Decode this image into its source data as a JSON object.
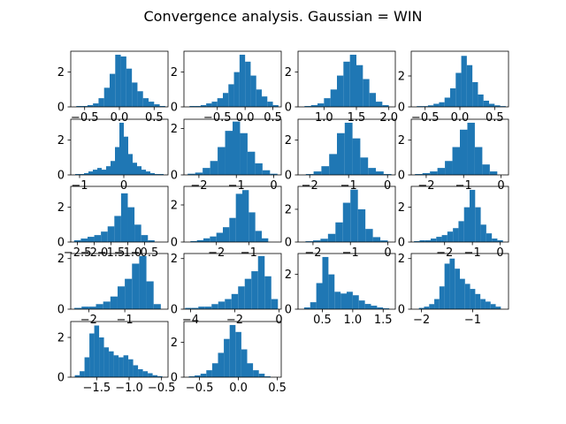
{
  "title": "Convergence analysis. Gaussian = WIN",
  "colors": {
    "bar": "#1f77b4",
    "axis": "#000000",
    "background": "#ffffff"
  },
  "chart_data": [
    {
      "type": "bar",
      "xlim": [
        -0.7,
        0.7
      ],
      "ylim": [
        0,
        3.2
      ],
      "xticks": [
        -0.5,
        0,
        0.5
      ],
      "xtick_labels": [
        "−0.5",
        "0.0",
        "0.5"
      ],
      "yticks": [
        0,
        2
      ],
      "ytick_labels": [
        "0",
        "2"
      ],
      "categories": [
        -0.58,
        -0.5,
        -0.42,
        -0.34,
        -0.26,
        -0.18,
        -0.1,
        -0.02,
        0.06,
        0.14,
        0.22,
        0.3,
        0.38,
        0.46,
        0.54,
        0.62
      ],
      "values": [
        0.05,
        0.05,
        0.1,
        0.2,
        0.5,
        1.1,
        1.9,
        3.0,
        2.9,
        2.2,
        1.4,
        0.9,
        0.5,
        0.3,
        0.15,
        0.05
      ]
    },
    {
      "type": "bar",
      "xlim": [
        -1.1,
        0.65
      ],
      "ylim": [
        0,
        3.2
      ],
      "xticks": [
        -0.5,
        0,
        0.5
      ],
      "xtick_labels": [
        "−0.5",
        "0.0",
        "0.5"
      ],
      "yticks": [
        0,
        2
      ],
      "ytick_labels": [
        "0",
        "2"
      ],
      "categories": [
        -0.95,
        -0.85,
        -0.75,
        -0.65,
        -0.55,
        -0.45,
        -0.35,
        -0.25,
        -0.15,
        -0.05,
        0.05,
        0.15,
        0.25,
        0.35,
        0.45,
        0.55
      ],
      "values": [
        0.05,
        0.05,
        0.1,
        0.2,
        0.3,
        0.5,
        0.8,
        1.3,
        2.0,
        3.0,
        2.6,
        1.8,
        1.0,
        0.6,
        0.3,
        0.1
      ]
    },
    {
      "type": "bar",
      "xlim": [
        0.6,
        2.1
      ],
      "ylim": [
        0,
        3.2
      ],
      "xticks": [
        1.0,
        1.5,
        2.0
      ],
      "xtick_labels": [
        "1.0",
        "1.5",
        "2.0"
      ],
      "yticks": [
        0,
        2
      ],
      "ytick_labels": [
        "0",
        "2"
      ],
      "categories": [
        0.75,
        0.85,
        0.95,
        1.05,
        1.15,
        1.25,
        1.35,
        1.45,
        1.55,
        1.65,
        1.75,
        1.85,
        1.95
      ],
      "values": [
        0.05,
        0.1,
        0.2,
        0.5,
        1.0,
        1.8,
        2.6,
        3.0,
        2.4,
        1.6,
        0.8,
        0.3,
        0.1
      ]
    },
    {
      "type": "bar",
      "xlim": [
        -0.7,
        0.7
      ],
      "ylim": [
        0,
        3.6
      ],
      "xticks": [
        -0.5,
        0,
        0.5
      ],
      "xtick_labels": [
        "−0.5",
        "0.0",
        "0.5"
      ],
      "yticks": [
        0,
        2
      ],
      "ytick_labels": [
        "0",
        "2"
      ],
      "categories": [
        -0.58,
        -0.5,
        -0.42,
        -0.34,
        -0.26,
        -0.18,
        -0.1,
        -0.02,
        0.06,
        0.14,
        0.22,
        0.3,
        0.38,
        0.46,
        0.54,
        0.62
      ],
      "values": [
        0.05,
        0.05,
        0.1,
        0.2,
        0.3,
        0.6,
        1.2,
        2.2,
        3.3,
        2.7,
        1.6,
        0.8,
        0.4,
        0.2,
        0.1,
        0.05
      ]
    },
    {
      "type": "bar",
      "xlim": [
        -1.2,
        1.0
      ],
      "ylim": [
        0,
        3.2
      ],
      "xticks": [
        -1,
        0
      ],
      "xtick_labels": [
        "−1",
        "0"
      ],
      "yticks": [
        0,
        2
      ],
      "ytick_labels": [
        "0",
        "2"
      ],
      "categories": [
        -1.05,
        -0.95,
        -0.85,
        -0.75,
        -0.65,
        -0.55,
        -0.45,
        -0.35,
        -0.25,
        -0.15,
        -0.05,
        0.05,
        0.15,
        0.25,
        0.35,
        0.45,
        0.55,
        0.65,
        0.75,
        0.85
      ],
      "values": [
        0.05,
        0.05,
        0.1,
        0.2,
        0.3,
        0.4,
        0.3,
        0.5,
        0.8,
        1.6,
        3.0,
        2.2,
        1.2,
        0.7,
        0.5,
        0.3,
        0.2,
        0.1,
        0.05,
        0.05
      ]
    },
    {
      "type": "bar",
      "xlim": [
        -2.4,
        0.2
      ],
      "ylim": [
        0,
        2.4
      ],
      "xticks": [
        -2,
        -1,
        0
      ],
      "xtick_labels": [
        "−2",
        "−1",
        "0"
      ],
      "yticks": [
        0,
        2
      ],
      "ytick_labels": [
        "0",
        "2"
      ],
      "categories": [
        -2.2,
        -2.0,
        -1.8,
        -1.6,
        -1.4,
        -1.2,
        -1.0,
        -0.8,
        -0.6,
        -0.4,
        -0.2,
        0.0
      ],
      "values": [
        0.05,
        0.1,
        0.3,
        0.6,
        1.2,
        1.9,
        2.3,
        1.8,
        1.0,
        0.5,
        0.2,
        0.05
      ]
    },
    {
      "type": "bar",
      "xlim": [
        -2.3,
        0.2
      ],
      "ylim": [
        0,
        3.2
      ],
      "xticks": [
        -2,
        -1,
        0
      ],
      "xtick_labels": [
        "−2",
        "−1",
        "0"
      ],
      "yticks": [
        0,
        2
      ],
      "ytick_labels": [
        "0",
        "2"
      ],
      "categories": [
        -2.0,
        -1.8,
        -1.6,
        -1.4,
        -1.2,
        -1.0,
        -0.8,
        -0.6,
        -0.4,
        -0.2,
        0.0
      ],
      "values": [
        0.05,
        0.2,
        0.5,
        1.2,
        2.4,
        3.0,
        2.1,
        1.0,
        0.4,
        0.2,
        0.05
      ]
    },
    {
      "type": "bar",
      "xlim": [
        -2.4,
        0.2
      ],
      "ylim": [
        0,
        3.2
      ],
      "xticks": [
        -2,
        -1,
        0
      ],
      "xtick_labels": [
        "−2",
        "−1",
        "0"
      ],
      "yticks": [
        0,
        2
      ],
      "ytick_labels": [
        "0",
        "2"
      ],
      "categories": [
        -2.2,
        -2.0,
        -1.8,
        -1.6,
        -1.4,
        -1.2,
        -1.0,
        -0.8,
        -0.6,
        -0.4,
        -0.2
      ],
      "values": [
        0.05,
        0.1,
        0.2,
        0.4,
        0.8,
        1.6,
        2.6,
        3.0,
        1.6,
        0.6,
        0.2
      ]
    },
    {
      "type": "bar",
      "xlim": [
        -2.7,
        0.2
      ],
      "ylim": [
        0,
        3.2
      ],
      "xticks": [
        -2.5,
        -2.0,
        -1.5,
        -1.0,
        -0.5
      ],
      "xtick_labels": [
        "−2.5",
        "−2.0",
        "−1.5",
        "−1.0",
        "−0.5"
      ],
      "yticks": [
        0,
        2
      ],
      "ytick_labels": [
        "0",
        "2"
      ],
      "categories": [
        -2.5,
        -2.3,
        -2.1,
        -1.9,
        -1.7,
        -1.5,
        -1.3,
        -1.1,
        -0.9,
        -0.7,
        -0.5,
        -0.3
      ],
      "values": [
        0.1,
        0.2,
        0.3,
        0.4,
        0.6,
        0.9,
        1.5,
        2.8,
        2.0,
        1.0,
        0.4,
        0.1
      ]
    },
    {
      "type": "bar",
      "xlim": [
        -3.0,
        0.0
      ],
      "ylim": [
        0,
        3.0
      ],
      "xticks": [
        -2,
        -1
      ],
      "xtick_labels": [
        "−2",
        "−1"
      ],
      "yticks": [
        0,
        2
      ],
      "ytick_labels": [
        "0",
        "2"
      ],
      "categories": [
        -2.7,
        -2.5,
        -2.3,
        -2.1,
        -1.9,
        -1.7,
        -1.5,
        -1.3,
        -1.1,
        -0.9,
        -0.7,
        -0.5
      ],
      "values": [
        0.05,
        0.1,
        0.2,
        0.3,
        0.5,
        0.8,
        1.3,
        2.6,
        2.8,
        1.6,
        0.6,
        0.2
      ]
    },
    {
      "type": "bar",
      "xlim": [
        -2.4,
        0.2
      ],
      "ylim": [
        0,
        3.4
      ],
      "xticks": [
        -2,
        -1,
        0
      ],
      "xtick_labels": [
        "−2",
        "−1",
        "0"
      ],
      "yticks": [
        0,
        2
      ],
      "ytick_labels": [
        "0",
        "2"
      ],
      "categories": [
        -2.1,
        -1.9,
        -1.7,
        -1.5,
        -1.3,
        -1.1,
        -0.9,
        -0.7,
        -0.5,
        -0.3,
        -0.1
      ],
      "values": [
        0.05,
        0.1,
        0.2,
        0.5,
        1.2,
        2.4,
        3.2,
        2.0,
        0.8,
        0.3,
        0.1
      ]
    },
    {
      "type": "bar",
      "xlim": [
        -3.2,
        0.3
      ],
      "ylim": [
        0,
        3.2
      ],
      "xticks": [
        -2,
        -1,
        0
      ],
      "xtick_labels": [
        "−2",
        "−1",
        "0"
      ],
      "yticks": [
        0,
        2
      ],
      "ytick_labels": [
        "0",
        "2"
      ],
      "categories": [
        -3.0,
        -2.8,
        -2.6,
        -2.4,
        -2.2,
        -2.0,
        -1.8,
        -1.6,
        -1.4,
        -1.2,
        -1.0,
        -0.8,
        -0.6,
        -0.4,
        -0.2,
        0.0
      ],
      "values": [
        0.05,
        0.1,
        0.1,
        0.2,
        0.3,
        0.4,
        0.6,
        0.8,
        1.2,
        2.0,
        3.0,
        2.0,
        1.0,
        0.5,
        0.2,
        0.1
      ]
    },
    {
      "type": "bar",
      "xlim": [
        -2.5,
        0.2
      ],
      "ylim": [
        0,
        2.2
      ],
      "xticks": [
        -2,
        -1
      ],
      "xtick_labels": [
        "−2",
        "−1"
      ],
      "yticks": [
        0,
        2
      ],
      "ytick_labels": [
        "0",
        "2"
      ],
      "categories": [
        -2.3,
        -2.1,
        -1.9,
        -1.7,
        -1.5,
        -1.3,
        -1.1,
        -0.9,
        -0.7,
        -0.5,
        -0.3,
        -0.1
      ],
      "values": [
        0.05,
        0.1,
        0.1,
        0.2,
        0.3,
        0.5,
        0.9,
        1.2,
        1.8,
        2.1,
        1.1,
        0.2
      ]
    },
    {
      "type": "bar",
      "xlim": [
        -4.3,
        0.1
      ],
      "ylim": [
        0,
        2.2
      ],
      "xticks": [
        -4,
        -2,
        0
      ],
      "xtick_labels": [
        "−4",
        "−2",
        "0"
      ],
      "yticks": [
        0,
        2
      ],
      "ytick_labels": [
        "0",
        "2"
      ],
      "categories": [
        -4.1,
        -3.8,
        -3.5,
        -3.2,
        -2.9,
        -2.6,
        -2.3,
        -2.0,
        -1.7,
        -1.4,
        -1.1,
        -0.8,
        -0.5,
        -0.2
      ],
      "values": [
        0.05,
        0.05,
        0.1,
        0.1,
        0.2,
        0.3,
        0.4,
        0.6,
        0.9,
        1.2,
        1.5,
        2.1,
        1.3,
        0.4
      ]
    },
    {
      "type": "bar",
      "xlim": [
        0.1,
        1.7
      ],
      "ylim": [
        0,
        3.2
      ],
      "xticks": [
        0.5,
        1.0,
        1.5
      ],
      "xtick_labels": [
        "0.5",
        "1.0",
        "1.5"
      ],
      "yticks": [
        0,
        2
      ],
      "ytick_labels": [
        "0",
        "2"
      ],
      "categories": [
        0.25,
        0.35,
        0.45,
        0.55,
        0.65,
        0.75,
        0.85,
        0.95,
        1.05,
        1.15,
        1.25,
        1.35,
        1.45,
        1.55
      ],
      "values": [
        0.1,
        0.4,
        1.5,
        3.0,
        2.0,
        1.0,
        0.9,
        1.0,
        0.8,
        0.5,
        0.3,
        0.2,
        0.1,
        0.05
      ]
    },
    {
      "type": "bar",
      "xlim": [
        -2.2,
        -0.3
      ],
      "ylim": [
        0,
        2.2
      ],
      "xticks": [
        -2,
        -1
      ],
      "xtick_labels": [
        "−2",
        "−1"
      ],
      "yticks": [
        0,
        2
      ],
      "ytick_labels": [
        "0",
        "2"
      ],
      "categories": [
        -2.0,
        -1.9,
        -1.8,
        -1.7,
        -1.6,
        -1.5,
        -1.4,
        -1.3,
        -1.2,
        -1.1,
        -1.0,
        -0.9,
        -0.8,
        -0.7,
        -0.6,
        -0.5
      ],
      "values": [
        0.05,
        0.1,
        0.2,
        0.4,
        0.9,
        1.8,
        2.0,
        1.6,
        1.2,
        1.0,
        0.8,
        0.6,
        0.4,
        0.3,
        0.2,
        0.1
      ]
    },
    {
      "type": "bar",
      "xlim": [
        -1.9,
        -0.4
      ],
      "ylim": [
        0,
        2.8
      ],
      "xticks": [
        -1.5,
        -1.0,
        -0.5
      ],
      "xtick_labels": [
        "−1.5",
        "−1.0",
        "−0.5"
      ],
      "yticks": [
        0,
        2
      ],
      "ytick_labels": [
        "0",
        "2"
      ],
      "categories": [
        -1.8,
        -1.725,
        -1.65,
        -1.575,
        -1.5,
        -1.425,
        -1.35,
        -1.275,
        -1.2,
        -1.125,
        -1.05,
        -0.975,
        -0.9,
        -0.825,
        -0.75,
        -0.675,
        -0.6,
        -0.525
      ],
      "values": [
        0.1,
        0.3,
        1.0,
        2.2,
        2.6,
        2.0,
        1.5,
        1.3,
        1.1,
        1.0,
        1.1,
        0.9,
        0.6,
        0.4,
        0.3,
        0.2,
        0.1,
        0.05
      ]
    },
    {
      "type": "bar",
      "xlim": [
        -0.7,
        0.55
      ],
      "ylim": [
        0,
        3.2
      ],
      "xticks": [
        -0.5,
        0,
        0.5
      ],
      "xtick_labels": [
        "−0.5",
        "0.0",
        "0.5"
      ],
      "yticks": [
        0,
        2
      ],
      "ytick_labels": [
        "0",
        "2"
      ],
      "categories": [
        -0.6,
        -0.525,
        -0.45,
        -0.375,
        -0.3,
        -0.225,
        -0.15,
        -0.075,
        0.0,
        0.075,
        0.15,
        0.225,
        0.3,
        0.375
      ],
      "values": [
        0.05,
        0.1,
        0.2,
        0.4,
        0.8,
        1.4,
        2.2,
        3.0,
        2.6,
        1.6,
        0.8,
        0.4,
        0.2,
        0.05
      ]
    }
  ]
}
